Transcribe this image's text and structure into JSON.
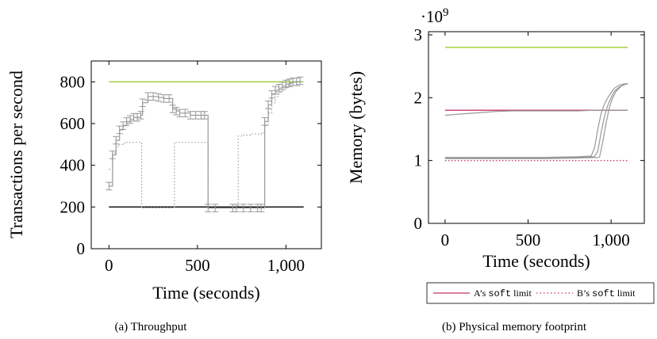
{
  "chart_data": [
    {
      "type": "scatter",
      "panel": "a",
      "caption": "(a) Throughput",
      "xlabel": "Time (seconds)",
      "ylabel": "Transactions per second",
      "xlim": [
        -100,
        1200
      ],
      "ylim": [
        0,
        900
      ],
      "xticks": [
        0,
        500,
        1000
      ],
      "xtick_labels": [
        "0",
        "500",
        "1,000"
      ],
      "yticks": [
        0,
        200,
        400,
        600,
        800
      ],
      "ytick_labels": [
        "0",
        "200",
        "400",
        "600",
        "800"
      ],
      "grid": false,
      "series": [
        {
          "kind": "hline",
          "color": "#9acd32",
          "x": [
            0,
            1100
          ],
          "y": [
            800,
            800
          ]
        },
        {
          "kind": "hline",
          "color": "#000000",
          "x": [
            0,
            1100
          ],
          "y": [
            200,
            200
          ]
        },
        {
          "kind": "step",
          "color": "#999999",
          "style": "errorbar",
          "x": [
            0,
            20,
            40,
            60,
            80,
            100,
            120,
            140,
            160,
            180,
            190,
            220,
            250,
            280,
            310,
            340,
            360,
            380,
            400,
            430,
            460,
            490,
            520,
            540,
            560,
            600,
            700,
            720,
            760,
            800,
            840,
            860,
            880,
            900,
            920,
            940,
            960,
            980,
            1000,
            1020,
            1040,
            1060,
            1080
          ],
          "y": [
            300,
            450,
            520,
            570,
            590,
            610,
            620,
            630,
            630,
            640,
            700,
            730,
            730,
            725,
            720,
            720,
            670,
            660,
            650,
            650,
            640,
            640,
            640,
            640,
            195,
            195,
            195,
            195,
            195,
            195,
            195,
            195,
            610,
            690,
            740,
            760,
            770,
            780,
            790,
            795,
            800,
            800,
            805
          ]
        },
        {
          "kind": "step",
          "color": "#999999",
          "style": "dotted",
          "x": [
            0,
            20,
            40,
            60,
            80,
            100,
            120,
            140,
            160,
            180,
            185,
            250,
            300,
            360,
            370,
            400,
            450,
            500,
            540,
            560,
            600,
            650,
            700,
            715,
            730,
            760,
            800,
            860,
            880,
            900,
            920,
            940,
            960,
            980,
            1000,
            1020,
            1040,
            1060,
            1080
          ],
          "y": [
            380,
            460,
            490,
            500,
            505,
            510,
            510,
            510,
            510,
            510,
            195,
            195,
            195,
            195,
            510,
            510,
            510,
            510,
            510,
            195,
            195,
            195,
            195,
            195,
            540,
            545,
            550,
            555,
            590,
            650,
            700,
            730,
            750,
            770,
            785,
            790,
            795,
            800,
            805
          ]
        }
      ]
    },
    {
      "type": "line",
      "panel": "b",
      "caption": "(b) Physical memory footprint",
      "xlabel": "Time (seconds)",
      "ylabel": "Memory (bytes)",
      "multiplier": "·10",
      "multiplier_exp": "9",
      "xlim": [
        -100,
        1200
      ],
      "ylim": [
        0,
        3.05
      ],
      "xticks": [
        0,
        500,
        1000
      ],
      "xtick_labels": [
        "0",
        "500",
        "1,000"
      ],
      "yticks": [
        0,
        1,
        2,
        3
      ],
      "ytick_labels": [
        "0",
        "1",
        "2",
        "3"
      ],
      "grid": false,
      "legend": {
        "position": "below",
        "entries": [
          {
            "prefix": "A’s ",
            "code": "soft",
            "suffix": " limit",
            "color": "#c8326e",
            "dash": "solid"
          },
          {
            "prefix": "B’s ",
            "code": "soft",
            "suffix": " limit",
            "color": "#c8326e",
            "dash": "dotted"
          }
        ]
      },
      "series": [
        {
          "kind": "hline",
          "color": "#9acd32",
          "x": [
            0,
            1100
          ],
          "y": [
            2.8,
            2.8
          ]
        },
        {
          "kind": "hline",
          "color": "#c8326e",
          "dash": "solid",
          "x": [
            0,
            1100
          ],
          "y": [
            1.8,
            1.8
          ]
        },
        {
          "kind": "hline",
          "color": "#c8326e",
          "dash": "dotted",
          "x": [
            0,
            1100
          ],
          "y": [
            1.0,
            1.0
          ]
        },
        {
          "kind": "line",
          "color": "#999999",
          "x": [
            0,
            100,
            200,
            300,
            400,
            500,
            600,
            700,
            800,
            900,
            1100
          ],
          "y": [
            1.72,
            1.74,
            1.76,
            1.78,
            1.79,
            1.79,
            1.79,
            1.79,
            1.79,
            1.8,
            1.8
          ]
        },
        {
          "kind": "line",
          "color": "#999999",
          "x": [
            0,
            200,
            400,
            600,
            800,
            880,
            900,
            920,
            940,
            960,
            980,
            1000,
            1020,
            1050,
            1080,
            1100
          ],
          "y": [
            1.05,
            1.05,
            1.05,
            1.05,
            1.06,
            1.07,
            1.2,
            1.5,
            1.75,
            1.9,
            2.0,
            2.08,
            2.15,
            2.2,
            2.22,
            2.22
          ]
        },
        {
          "kind": "line",
          "color": "#999999",
          "x": [
            0,
            200,
            400,
            600,
            800,
            900,
            920,
            940,
            960,
            980,
            1000,
            1020,
            1050,
            1080,
            1100
          ],
          "y": [
            1.04,
            1.04,
            1.04,
            1.04,
            1.05,
            1.06,
            1.15,
            1.45,
            1.7,
            1.88,
            2.0,
            2.1,
            2.17,
            2.21,
            2.22
          ]
        },
        {
          "kind": "line",
          "color": "#999999",
          "x": [
            0,
            200,
            400,
            600,
            800,
            930,
            950,
            970,
            990,
            1010,
            1030,
            1060,
            1090,
            1100
          ],
          "y": [
            1.03,
            1.03,
            1.03,
            1.03,
            1.04,
            1.05,
            1.3,
            1.6,
            1.85,
            2.0,
            2.1,
            2.18,
            2.22,
            2.23
          ]
        }
      ]
    }
  ]
}
